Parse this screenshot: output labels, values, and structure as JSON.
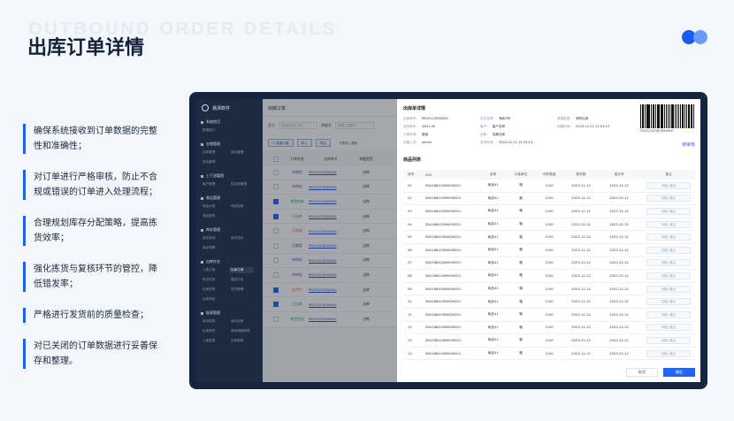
{
  "watermark": "OUTBOUND ORDER DETAILS",
  "title": "出库订单详情",
  "colors": {
    "accent": "#1a5cf2",
    "accent_light": "#6b9bf6",
    "dark_frame": "#16253f",
    "status_purple": "#7b3fe4"
  },
  "bullets": [
    "确保系统接收到订单数据的完整性和准确性；",
    "对订单进行严格审核，防止不合规或错误的订单进入处理流程；",
    "合理规划库存分配策略，提高拣货效率；",
    "强化拣货与复核环节的管控，降低错发率；",
    "严格进行发货前的质量检查；",
    "对已关闭的订单数据进行妥善保存和整理。"
  ],
  "app": {
    "brand": "易湃软件",
    "nav": [
      {
        "head": "系统首页",
        "rows": [
          [
            "数据统计"
          ]
        ]
      },
      {
        "head": "仓储管理",
        "rows": [
          [
            "仓库管理",
            "库区管理"
          ],
          [
            "库位管理"
          ]
        ]
      },
      {
        "head": "上下游管理",
        "rows": [
          [
            "客户管理",
            "供应商管理"
          ]
        ]
      },
      {
        "head": "商品管理",
        "rows": [
          [
            "商品分类",
            "商品档案"
          ],
          [
            "商品条码"
          ]
        ]
      },
      {
        "head": "库存管理",
        "rows": [
          [
            "库存查询",
            "库存流水"
          ],
          [
            "库存预警"
          ]
        ]
      },
      {
        "head": "出库作业",
        "rows": [
          [
            "入库订单",
            "出库订单"
          ],
          [
            "拣货任务",
            "复核打包"
          ],
          [
            "出库签收",
            "发货管理"
          ],
          [
            "出库质检"
          ]
        ]
      },
      {
        "head": "报表管理",
        "rows": [
          [
            "库存报表",
            "库存台账"
          ],
          [
            "出库报表",
            "库存明细报表"
          ],
          [
            "入库报表",
            "出库报表"
          ]
        ]
      }
    ],
    "list_page": {
      "title": "出库订单",
      "filter_label_1": "货主",
      "filter_placeholder_1": "请选择货主名称",
      "filter_label_2": "单据号",
      "filter_placeholder_2": "请输入单据号",
      "buttons": [
        "+ 新增订单",
        "导入",
        "导出",
        "下载导入模板"
      ],
      "columns": [
        "订单状态",
        "出库单号",
        "单据类型"
      ],
      "rows": [
        {
          "checked": false,
          "status": "待审核",
          "status_color": "#7b3fe4",
          "no": "PR20123090000",
          "type": "出库"
        },
        {
          "checked": false,
          "status": "待审核",
          "status_color": "#7b3fe4",
          "no": "PR20123090000",
          "type": "出库"
        },
        {
          "checked": true,
          "status": "拣货完成",
          "status_color": "#1ea672",
          "no": "PR20123090000",
          "type": "出库"
        },
        {
          "checked": true,
          "status": "已出库",
          "status_color": "#1ea672",
          "no": "PR20123090000",
          "type": "出库"
        },
        {
          "checked": false,
          "status": "已关闭",
          "status_color": "#d14343",
          "no": "PR20123090000",
          "type": "出库"
        },
        {
          "checked": false,
          "status": "已发货",
          "status_color": "#333333",
          "no": "PR20123090000",
          "type": "出库"
        },
        {
          "checked": false,
          "status": "待审核",
          "status_color": "#7b3fe4",
          "no": "PR20123090000",
          "type": "出库"
        },
        {
          "checked": false,
          "status": "待审核",
          "status_color": "#7b3fe4",
          "no": "PR20123090000",
          "type": "出库"
        },
        {
          "checked": true,
          "status": "拣货中",
          "status_color": "#e08a1a",
          "no": "PR20123090000",
          "type": "出库"
        },
        {
          "checked": true,
          "status": "已出库",
          "status_color": "#1ea672",
          "no": "PR20123090000",
          "type": "出库"
        },
        {
          "checked": false,
          "status": "拣货完成",
          "status_color": "#1ea672",
          "no": "PR20123090000",
          "type": "出库"
        }
      ]
    },
    "detail": {
      "title": "出库单详情",
      "info": [
        [
          [
            "出库单号：",
            "PR20123090000"
          ],
          [
            "货主名称：",
            "海信3号"
          ],
          [
            "单据类型：",
            "采购出库"
          ]
        ],
        [
          [
            "送货单号：",
            "ZA01-00"
          ],
          [
            "客户：",
            "客户名称"
          ],
          [
            "创建时间：",
            "2023-12-12 12:23:12"
          ]
        ],
        [
          [
            "订单来源：",
            "直营"
          ],
          [
            "仓库：",
            "成都仓库"
          ]
        ],
        [
          [
            "创建人员：",
            "admin"
          ],
          [
            "发货时间：",
            "2023-12-12 15:20:13"
          ]
        ]
      ],
      "barcode_number": "YS01234567890987",
      "status": "待审核",
      "sub_title": "商品列表",
      "columns": [
        "序号",
        "SKU",
        "名称",
        "计量单位",
        "可拣数量",
        "拣货数",
        "批次号",
        "备注"
      ],
      "rows": [
        [
          "01",
          "SKU16641589000001",
          "商品01",
          "箱",
          "1100",
          "2023-12-12",
          "2023-12-12",
          "请输入备注"
        ],
        [
          "02",
          "SKU16641589000001",
          "商品01",
          "箱",
          "1100",
          "2023-12-12",
          "2023-12-12",
          "请输入备注"
        ],
        [
          "03",
          "SKU16641589000001",
          "商品01",
          "箱",
          "1100",
          "2023-12-12",
          "2023-12-12",
          "请输入备注"
        ],
        [
          "04",
          "SKU16641589000001",
          "商品01",
          "箱",
          "1100",
          "2023-12-12",
          "2023-12-12",
          "请输入备注"
        ],
        [
          "05",
          "SKU16641589000001",
          "商品01",
          "箱",
          "1100",
          "2023-12-12",
          "2023-12-12",
          "请输入备注"
        ],
        [
          "06",
          "SKU16641589000001",
          "商品01",
          "箱",
          "1100",
          "2023-12-12",
          "2023-12-12",
          "请输入备注"
        ],
        [
          "07",
          "SKU16641589000001",
          "商品01",
          "箱",
          "1100",
          "2023-12-12",
          "2023-12-12",
          "请输入备注"
        ],
        [
          "08",
          "SKU16641589000001",
          "商品01",
          "箱",
          "1100",
          "2023-12-12",
          "2023-12-12",
          "请输入备注"
        ],
        [
          "09",
          "SKU16641589000001",
          "商品01",
          "箱",
          "1100",
          "2023-12-12",
          "2023-12-12",
          "请输入备注"
        ],
        [
          "10",
          "SKU16641589000001",
          "商品01",
          "箱",
          "1100",
          "2023-12-12",
          "2023-12-12",
          "请输入备注"
        ],
        [
          "11",
          "SKU16641589000001",
          "商品01",
          "箱",
          "1100",
          "2023-12-12",
          "2023-12-12",
          "请输入备注"
        ],
        [
          "12",
          "SKU16641589000001",
          "商品01",
          "箱",
          "1100",
          "2023-12-12",
          "2023-12-12",
          "请输入备注"
        ],
        [
          "13",
          "SKU16641589000001",
          "商品01",
          "箱",
          "1100",
          "2023-12-12",
          "2023-12-12",
          "请输入备注"
        ],
        [
          "14",
          "SKU16641589000001",
          "商品01",
          "箱",
          "1100",
          "2023-12-12",
          "2023-12-12",
          "请输入备注"
        ]
      ],
      "cancel_label": "取消",
      "confirm_label": "确定"
    }
  }
}
